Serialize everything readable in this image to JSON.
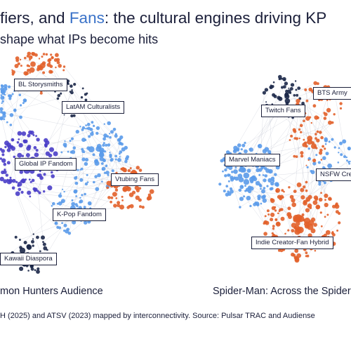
{
  "header": {
    "title_prefix": "fiers, and ",
    "title_fans": "Fans",
    "title_suffix": ": the cultural engines driving KP",
    "subtitle": "shape what IPs become hits"
  },
  "networks": {
    "left": {
      "caption": "mon Hunters Audience",
      "labels": [
        "BL Storysmiths",
        "LatAM Culturalists",
        "Global IP Fandom",
        "Vtubing Fans",
        "K-Pop Fandom",
        "Kawaii Diaspora"
      ]
    },
    "right": {
      "caption": "Spider-Man: Across the Spider",
      "labels": [
        "BTS Army",
        "Twitch Fans",
        "Marvel Maniacs",
        "NSFW Cre",
        "Indie Creator-Fan Hybrid"
      ]
    }
  },
  "footer": "H (2025) and ATSV (2023) mapped by interconnectivity. Source: Pulsar TRAC and Audiense",
  "colors": {
    "orange": "#e2612a",
    "light_blue": "#5b9bea",
    "purple": "#4a3ec8",
    "navy": "#1b2748",
    "text": "#1b1f3a"
  }
}
